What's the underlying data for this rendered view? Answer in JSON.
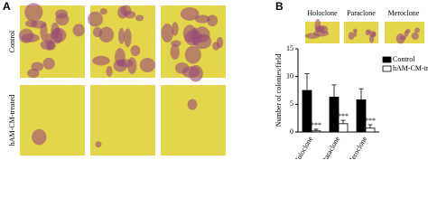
{
  "figure": {
    "panels": [
      "A",
      "B"
    ],
    "row_labels": [
      "Control",
      "hAM-CM-treated"
    ],
    "colony_types": [
      "Holoclone",
      "Paraclone",
      "Meroclone"
    ]
  },
  "chart_data": {
    "type": "bar",
    "ylabel": "Number of colonies/field",
    "categories": [
      "Holoclone",
      "Paraclone",
      "Meroclone"
    ],
    "series": [
      {
        "name": "Control",
        "color": "#000000",
        "values": [
          7.5,
          6.3,
          5.8
        ],
        "errors": [
          3.0,
          2.2,
          2.0
        ]
      },
      {
        "name": "hAM-CM-treated",
        "color": "#ffffff",
        "values": [
          0.2,
          1.5,
          0.7
        ],
        "errors": [
          0.3,
          0.6,
          0.6
        ]
      }
    ],
    "annotations": [
      "***",
      "***",
      "***"
    ],
    "ylim": [
      0,
      15
    ],
    "yticks": [
      0,
      5,
      10,
      15
    ],
    "legend": "upper right"
  }
}
